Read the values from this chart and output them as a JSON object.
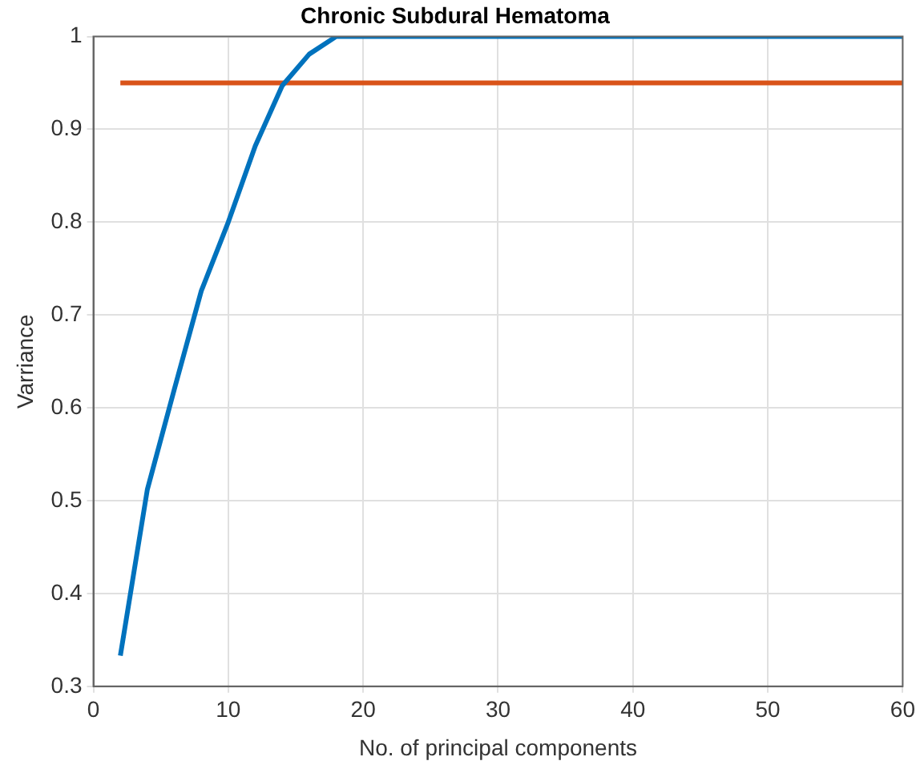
{
  "chart_data": {
    "type": "line",
    "title": "Chronic Subdural Hematoma",
    "xlabel": "No. of principal components",
    "ylabel": "Varriance",
    "xlim": [
      0,
      60
    ],
    "xticks": [
      0,
      10,
      20,
      30,
      40,
      50,
      60
    ],
    "ylim": [
      0.3,
      1
    ],
    "yticks": [
      0.3,
      0.4,
      0.5,
      0.6,
      0.7,
      0.8,
      0.9,
      1
    ],
    "grid": true,
    "legend": false,
    "marker": "none",
    "line_style": "solid",
    "series": [
      {
        "color": "#0072bd",
        "x": [
          2,
          4,
          6,
          8,
          10,
          12,
          14,
          16,
          18,
          60
        ],
        "values": [
          0.333,
          0.512,
          0.62,
          0.726,
          0.8,
          0.882,
          0.947,
          0.981,
          1,
          1
        ]
      },
      {
        "color": "#d95319",
        "x": [
          2,
          60
        ],
        "values": [
          0.95,
          0.95
        ]
      }
    ]
  }
}
